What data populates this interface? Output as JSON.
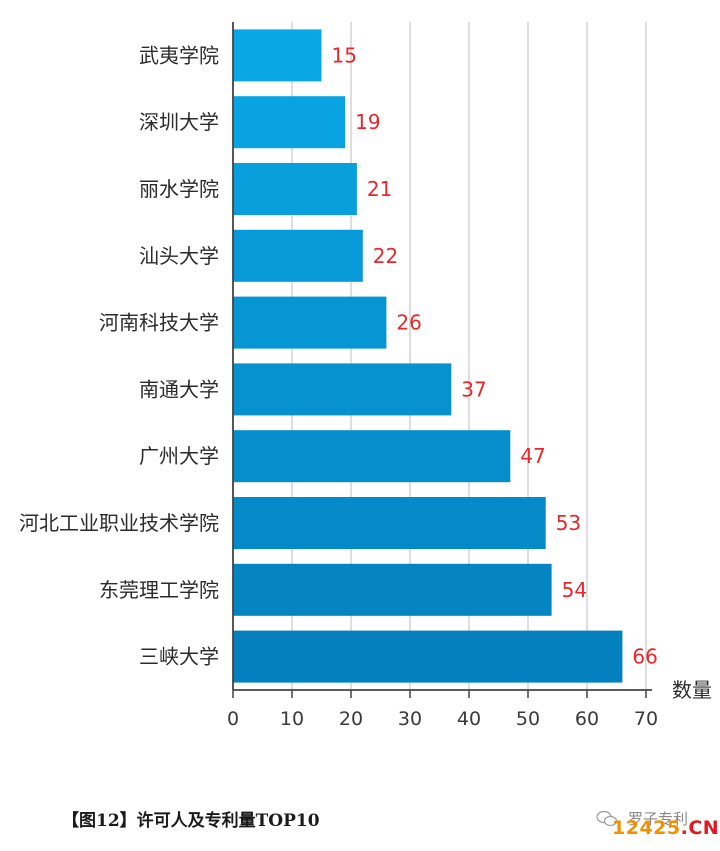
{
  "chart_data": {
    "type": "bar",
    "orientation": "horizontal",
    "categories": [
      "武夷学院",
      "深圳大学",
      "丽水学院",
      "汕头大学",
      "河南科技大学",
      "南通大学",
      "广州大学",
      "河北工业职业技术学院",
      "东莞理工学院",
      "三峡大学"
    ],
    "values": [
      15,
      19,
      21,
      22,
      26,
      37,
      47,
      53,
      54,
      66
    ],
    "xlabel": "数量",
    "xlim": [
      0,
      70
    ],
    "xticks": [
      0,
      10,
      20,
      30,
      40,
      50,
      60,
      70
    ],
    "grid": true,
    "colors": {
      "bar_top": "#0aa7e5",
      "bar_bottom": "#0480be",
      "value_label": "#e8262b",
      "grid": "#c8c8c8",
      "axis": "#444444"
    }
  },
  "caption": "【图12】许可人及专利量TOP10",
  "watermark": {
    "text": "罗子专利",
    "site_number": "12425",
    "site_domain": ".CN"
  }
}
